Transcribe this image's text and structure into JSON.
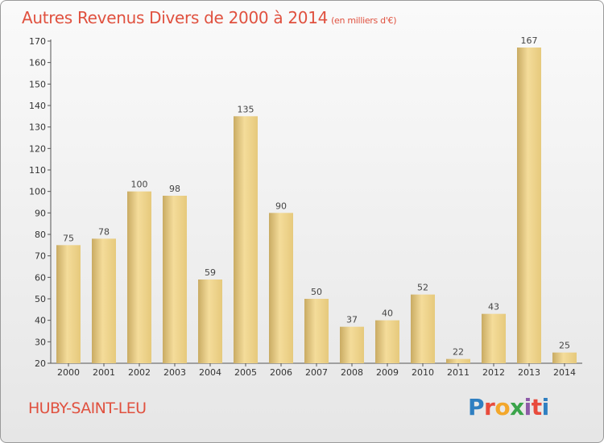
{
  "header": {
    "title": "Autres Revenus Divers de 2000 à 2014",
    "subtitle": "(en milliers d'€)"
  },
  "footer": {
    "commune": "HUBY-SAINT-LEU",
    "logo_letters": [
      "P",
      "r",
      "o",
      "x",
      "i",
      "t",
      "i"
    ],
    "logo_colors": [
      "#2f7fc1",
      "#e84b3c",
      "#f3a72b",
      "#3aa44a",
      "#8e5aa8",
      "#e84b3c",
      "#2f7fc1"
    ]
  },
  "chart_data": {
    "type": "bar",
    "title": "Autres Revenus Divers de 2000 à 2014",
    "subtitle": "(en milliers d'€)",
    "categories": [
      "2000",
      "2001",
      "2002",
      "2003",
      "2004",
      "2005",
      "2006",
      "2007",
      "2008",
      "2009",
      "2010",
      "2011",
      "2012",
      "2013",
      "2014"
    ],
    "values": [
      75,
      78,
      100,
      98,
      59,
      135,
      90,
      50,
      37,
      40,
      52,
      22,
      43,
      167,
      25
    ],
    "ylim": [
      20,
      170
    ],
    "yticks": [
      20,
      30,
      40,
      50,
      60,
      70,
      80,
      90,
      100,
      110,
      120,
      130,
      140,
      150,
      160,
      170
    ],
    "grid": false,
    "bar_color_light": "#f4dc9a",
    "bar_color_dark": "#c9ab63"
  }
}
